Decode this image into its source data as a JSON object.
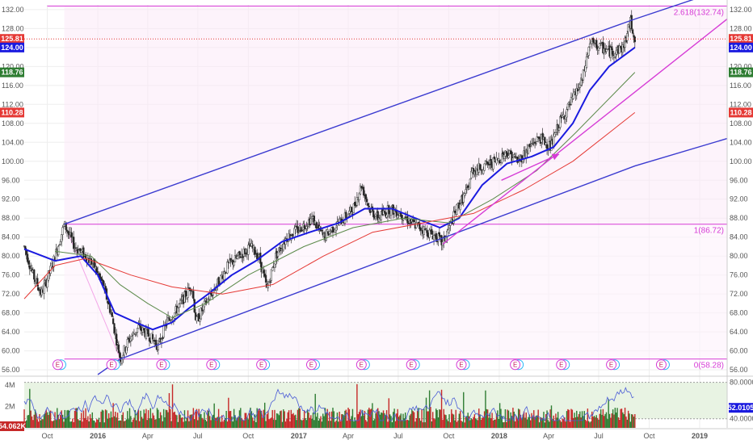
{
  "chart_data": {
    "type": "candlestick",
    "price_axis": {
      "ylim": [
        55,
        133
      ],
      "ticks": [
        "132.00",
        "128.00",
        "124.00",
        "120.00",
        "116.00",
        "112.00",
        "108.00",
        "104.00",
        "100.00",
        "96.00",
        "92.00",
        "88.00",
        "84.00",
        "80.00",
        "76.00",
        "72.00",
        "68.00",
        "64.00",
        "60.00",
        "56.00"
      ]
    },
    "time_axis": {
      "start": "2015-08-20",
      "end": "2019-02-20",
      "ticks": [
        {
          "date": "2015-10-01",
          "label": "Oct",
          "bold": false
        },
        {
          "date": "2016-01-01",
          "label": "2016",
          "bold": true
        },
        {
          "date": "2016-04-01",
          "label": "Apr",
          "bold": false
        },
        {
          "date": "2016-07-01",
          "label": "Jul",
          "bold": false
        },
        {
          "date": "2016-10-01",
          "label": "Oct",
          "bold": false
        },
        {
          "date": "2017-01-01",
          "label": "2017",
          "bold": true
        },
        {
          "date": "2017-04-01",
          "label": "Apr",
          "bold": false
        },
        {
          "date": "2017-07-01",
          "label": "Jul",
          "bold": false
        },
        {
          "date": "2017-10-01",
          "label": "Oct",
          "bold": false
        },
        {
          "date": "2018-01-01",
          "label": "2018",
          "bold": true
        },
        {
          "date": "2018-04-01",
          "label": "Apr",
          "bold": false
        },
        {
          "date": "2018-07-01",
          "label": "Jul",
          "bold": false
        },
        {
          "date": "2018-10-01",
          "label": "Oct",
          "bold": false
        },
        {
          "date": "2019-01-01",
          "label": "2019",
          "bold": true
        }
      ]
    },
    "price_badges": [
      {
        "value": 125.81,
        "label": "125.81",
        "color": "#e53935",
        "line": "dotted"
      },
      {
        "value": 124.0,
        "label": "124.00",
        "color": "#1a1adf"
      },
      {
        "value": 118.76,
        "label": "118.76",
        "color": "#2e7d32"
      },
      {
        "value": 110.28,
        "label": "110.28",
        "color": "#e53935"
      }
    ],
    "price_path": [
      [
        "2015-08-20",
        82
      ],
      [
        "2015-09-05",
        76
      ],
      [
        "2015-09-20",
        72
      ],
      [
        "2015-10-10",
        78
      ],
      [
        "2015-11-01",
        86.72
      ],
      [
        "2015-11-20",
        82
      ],
      [
        "2015-12-10",
        80
      ],
      [
        "2015-12-25",
        78
      ],
      [
        "2016-01-10",
        74
      ],
      [
        "2016-01-25",
        68
      ],
      [
        "2016-02-11",
        58.28
      ],
      [
        "2016-02-25",
        62
      ],
      [
        "2016-03-15",
        65
      ],
      [
        "2016-04-05",
        63
      ],
      [
        "2016-04-20",
        61
      ],
      [
        "2016-05-05",
        66
      ],
      [
        "2016-05-20",
        68
      ],
      [
        "2016-06-05",
        71
      ],
      [
        "2016-06-20",
        74
      ],
      [
        "2016-06-28",
        66
      ],
      [
        "2016-07-15",
        70
      ],
      [
        "2016-08-05",
        74
      ],
      [
        "2016-08-25",
        78
      ],
      [
        "2016-09-15",
        80
      ],
      [
        "2016-10-05",
        82
      ],
      [
        "2016-10-20",
        80
      ],
      [
        "2016-11-04",
        73
      ],
      [
        "2016-11-20",
        80
      ],
      [
        "2016-12-10",
        84
      ],
      [
        "2017-01-05",
        86
      ],
      [
        "2017-01-25",
        88
      ],
      [
        "2017-02-15",
        84
      ],
      [
        "2017-03-05",
        86
      ],
      [
        "2017-03-25",
        88
      ],
      [
        "2017-04-10",
        90
      ],
      [
        "2017-04-25",
        95
      ],
      [
        "2017-05-10",
        90
      ],
      [
        "2017-05-25",
        88
      ],
      [
        "2017-06-15",
        90
      ],
      [
        "2017-07-05",
        89
      ],
      [
        "2017-07-25",
        87
      ],
      [
        "2017-08-10",
        86
      ],
      [
        "2017-08-25",
        85
      ],
      [
        "2017-09-10",
        84
      ],
      [
        "2017-09-20",
        82.5
      ],
      [
        "2017-10-05",
        87
      ],
      [
        "2017-10-20",
        91
      ],
      [
        "2017-11-05",
        94
      ],
      [
        "2017-11-12",
        98
      ],
      [
        "2017-12-05",
        99
      ],
      [
        "2017-12-25",
        100
      ],
      [
        "2018-01-15",
        102
      ],
      [
        "2018-02-05",
        100
      ],
      [
        "2018-02-25",
        103
      ],
      [
        "2018-03-15",
        105
      ],
      [
        "2018-04-05",
        103
      ],
      [
        "2018-04-20",
        108
      ],
      [
        "2018-05-10",
        112
      ],
      [
        "2018-06-01",
        117
      ],
      [
        "2018-06-15",
        125
      ],
      [
        "2018-07-05",
        124
      ],
      [
        "2018-07-25",
        123
      ],
      [
        "2018-08-15",
        124
      ],
      [
        "2018-08-28",
        129.5
      ],
      [
        "2018-09-05",
        126
      ]
    ],
    "moving_averages": [
      {
        "color": "#1a1adf",
        "width": 2.0,
        "points": [
          [
            "2015-08-20",
            81.5
          ],
          [
            "2015-10-15",
            79
          ],
          [
            "2015-12-01",
            80
          ],
          [
            "2016-01-01",
            76
          ],
          [
            "2016-02-01",
            68
          ],
          [
            "2016-03-10",
            66
          ],
          [
            "2016-04-10",
            64.5
          ],
          [
            "2016-05-15",
            66
          ],
          [
            "2016-06-15",
            69
          ],
          [
            "2016-07-20",
            72
          ],
          [
            "2016-09-01",
            76
          ],
          [
            "2016-10-15",
            79
          ],
          [
            "2016-12-01",
            83
          ],
          [
            "2017-01-20",
            85
          ],
          [
            "2017-03-15",
            87
          ],
          [
            "2017-05-01",
            90
          ],
          [
            "2017-06-20",
            90
          ],
          [
            "2017-08-01",
            88
          ],
          [
            "2017-09-15",
            86
          ],
          [
            "2017-10-20",
            88
          ],
          [
            "2017-12-01",
            95
          ],
          [
            "2018-01-15",
            99.5
          ],
          [
            "2018-03-01",
            101
          ],
          [
            "2018-04-10",
            103
          ],
          [
            "2018-05-15",
            108
          ],
          [
            "2018-06-15",
            115
          ],
          [
            "2018-07-20",
            120
          ],
          [
            "2018-09-05",
            124.0
          ]
        ]
      },
      {
        "color": "#5b8a4a",
        "width": 1.0,
        "points": [
          [
            "2015-10-15",
            81
          ],
          [
            "2015-12-20",
            80
          ],
          [
            "2016-02-10",
            74
          ],
          [
            "2016-04-01",
            70
          ],
          [
            "2016-05-15",
            67
          ],
          [
            "2016-07-15",
            70
          ],
          [
            "2016-10-01",
            76
          ],
          [
            "2017-01-10",
            82
          ],
          [
            "2017-04-10",
            86
          ],
          [
            "2017-07-10",
            88
          ],
          [
            "2017-10-01",
            87
          ],
          [
            "2017-12-20",
            92
          ],
          [
            "2018-03-10",
            98
          ],
          [
            "2018-05-20",
            106
          ],
          [
            "2018-09-05",
            118.76
          ]
        ]
      },
      {
        "color": "#e53935",
        "width": 1.0,
        "points": [
          [
            "2015-08-20",
            71
          ],
          [
            "2015-10-15",
            78
          ],
          [
            "2015-12-10",
            79.5
          ],
          [
            "2016-03-01",
            76
          ],
          [
            "2016-05-15",
            73.5
          ],
          [
            "2016-08-15",
            72
          ],
          [
            "2016-11-15",
            74
          ],
          [
            "2017-02-15",
            80
          ],
          [
            "2017-05-15",
            85
          ],
          [
            "2017-08-15",
            87
          ],
          [
            "2017-11-15",
            89
          ],
          [
            "2018-02-15",
            94
          ],
          [
            "2018-05-15",
            100
          ],
          [
            "2018-09-05",
            110.28
          ]
        ]
      }
    ],
    "channel_lines": [
      {
        "color": "#3b3bd0",
        "points": [
          [
            "2015-11-01",
            86.72
          ],
          [
            "2018-09-05",
            130
          ],
          [
            "2019-02-20",
            136.5
          ]
        ]
      },
      {
        "color": "#3b3bd0",
        "points": [
          [
            "2016-01-01",
            55
          ],
          [
            "2016-02-11",
            58.28
          ],
          [
            "2018-09-05",
            99
          ],
          [
            "2019-02-20",
            104.8
          ]
        ]
      },
      {
        "color": "#d63bd6",
        "points": [
          [
            "2017-09-20",
            82.5
          ],
          [
            "2019-02-20",
            130
          ]
        ]
      },
      {
        "color": "#d63bd6",
        "points": [
          [
            "2018-01-05",
            96
          ],
          [
            "2018-04-20",
            101.5
          ]
        ],
        "arrow": true
      }
    ],
    "fib_levels": [
      {
        "value": 132.74,
        "label": "2.618(132.74)"
      },
      {
        "value": 86.72,
        "label": "1(86.72)"
      },
      {
        "value": 58.28,
        "label": "0(58.28)"
      }
    ],
    "earnings_markers": [
      "2015-10-20",
      "2016-01-26",
      "2016-04-26",
      "2016-07-26",
      "2016-10-25",
      "2017-01-24",
      "2017-04-25",
      "2017-07-25",
      "2017-10-24",
      "2018-01-30",
      "2018-04-24",
      "2018-07-24",
      "2018-10-23"
    ],
    "earnings_label": "E",
    "volume_panel": {
      "ylim": [
        0,
        4700000
      ],
      "ticks": [
        "4M",
        "2M"
      ],
      "badge": "54.062K"
    },
    "oscillator": {
      "ylim": [
        30,
        85
      ],
      "ticks": [
        "80.0000",
        "40.0000"
      ],
      "band": [
        40,
        80
      ],
      "badge": "52.0105",
      "color": "#4a5bd6"
    }
  }
}
